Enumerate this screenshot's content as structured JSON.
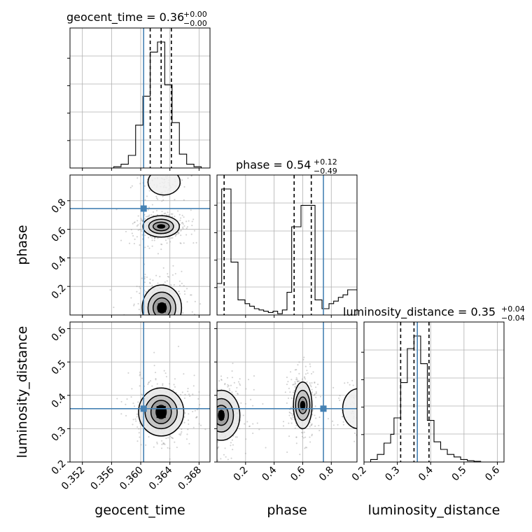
{
  "chart_data": {
    "type": "corner",
    "parameters": [
      "geocent_time",
      "phase",
      "luminosity_distance"
    ],
    "truth": {
      "geocent_time": 0.3604,
      "phase": 0.745,
      "luminosity_distance": 0.36
    },
    "colors": {
      "truth": "#4682b4",
      "hist": "#000000",
      "grid": "#b0b0b0",
      "points": "#9a9a9a"
    },
    "titles": [
      {
        "name": "geocent_time",
        "median": "0.36",
        "plus": "+0.00",
        "minus": "−0.00"
      },
      {
        "name": "phase",
        "median": "0.54",
        "plus": "+0.12",
        "minus": "−0.49"
      },
      {
        "name": "luminosity_distance",
        "median": "0.35",
        "plus": "+0.04",
        "minus": "−0.04"
      }
    ],
    "axes": {
      "geocent_time": {
        "range": [
          0.3503,
          0.3695
        ],
        "ticks": [
          0.352,
          0.356,
          0.36,
          0.364,
          0.368
        ],
        "tick_labels": [
          "0.352",
          "0.356",
          "0.360",
          "0.364",
          "0.368"
        ]
      },
      "phase": {
        "range": [
          0.0,
          0.98
        ],
        "ticks": [
          0.2,
          0.4,
          0.6,
          0.8
        ],
        "tick_labels": [
          "0.2",
          "0.4",
          "0.6",
          "0.8"
        ]
      },
      "luminosity_distance": {
        "range": [
          0.2,
          0.62
        ],
        "ticks": [
          0.2,
          0.3,
          0.4,
          0.5,
          0.6
        ],
        "tick_labels": [
          "0.2",
          "0.3",
          "0.4",
          "0.5",
          "0.6"
        ]
      }
    },
    "histograms": {
      "geocent_time": {
        "edges": [
          0.3503,
          0.3513,
          0.3523,
          0.3533,
          0.3543,
          0.3553,
          0.3563,
          0.3573,
          0.3583,
          0.3593,
          0.3603,
          0.3613,
          0.3623,
          0.3633,
          0.3643,
          0.3653,
          0.3663,
          0.3673,
          0.3683,
          0.3693
        ],
        "counts": [
          0,
          0,
          0,
          0,
          0,
          0,
          1,
          3,
          10,
          34,
          57,
          92,
          100,
          66,
          36,
          11,
          3,
          1,
          0
        ],
        "quantiles": [
          0.3613,
          0.3628,
          0.3642
        ]
      },
      "phase": {
        "edges": [
          0.0,
          0.0163,
          0.0327,
          0.049,
          0.0653,
          0.0817,
          0.098,
          0.1143,
          0.1307,
          0.147,
          0.1633,
          0.1797,
          0.196,
          0.2123,
          0.2287,
          0.245,
          0.2613,
          0.2777,
          0.294,
          0.3103,
          0.3267,
          0.343,
          0.3593,
          0.3757,
          0.392,
          0.4083,
          0.4247,
          0.441,
          0.4573,
          0.4737,
          0.49,
          0.5063,
          0.5227,
          0.539,
          0.5553,
          0.5717,
          0.588,
          0.6043,
          0.6207,
          0.637,
          0.6533,
          0.6697,
          0.6863,
          0.7023,
          0.7187,
          0.735,
          0.7513,
          0.7677,
          0.784,
          0.8003,
          0.8167,
          0.833,
          0.8493,
          0.8657,
          0.882,
          0.8983,
          0.9147,
          0.931,
          0.9473,
          0.9637,
          0.98
        ],
        "counts": [
          25,
          25,
          100,
          100,
          100,
          100,
          42,
          42,
          42,
          12,
          12,
          12,
          9,
          9,
          7,
          7,
          5,
          5,
          4,
          4,
          3,
          3,
          2,
          2,
          3,
          3,
          1,
          1,
          4,
          4,
          18,
          18,
          70,
          70,
          70,
          70,
          87,
          87,
          87,
          87,
          87,
          87,
          12,
          12,
          12,
          5,
          5,
          5,
          9,
          9,
          11,
          11,
          14,
          14,
          16,
          16,
          20,
          20,
          20,
          20
        ],
        "quantiles": [
          0.05,
          0.54,
          0.66
        ]
      },
      "luminosity_distance": {
        "edges": [
          0.2,
          0.21,
          0.22,
          0.23,
          0.24,
          0.25,
          0.26,
          0.27,
          0.28,
          0.29,
          0.3,
          0.31,
          0.32,
          0.33,
          0.34,
          0.35,
          0.36,
          0.37,
          0.38,
          0.39,
          0.4,
          0.41,
          0.42,
          0.43,
          0.44,
          0.45,
          0.46,
          0.47,
          0.48,
          0.49,
          0.5,
          0.51,
          0.52,
          0.53,
          0.54,
          0.55,
          0.56,
          0.57
        ],
        "counts": [
          0,
          0,
          2,
          2,
          6,
          6,
          15,
          15,
          22,
          35,
          35,
          63,
          63,
          90,
          90,
          100,
          100,
          78,
          78,
          33,
          33,
          16,
          16,
          10,
          10,
          6,
          6,
          4,
          4,
          2,
          2,
          1,
          1,
          0.5,
          0.5,
          0,
          0
        ],
        "quantiles": [
          0.31,
          0.35,
          0.395
        ]
      }
    },
    "contours": {
      "phase_vs_geocent_time": [
        {
          "cx": 0.3628,
          "cy": 0.62,
          "rx": [
            0.0005,
            0.0011,
            0.0017,
            0.0025
          ],
          "ry": [
            0.012,
            0.03,
            0.05,
            0.075
          ]
        },
        {
          "cx": 0.3629,
          "cy": 0.05,
          "rx": [
            0.0006,
            0.0012,
            0.0019,
            0.0027
          ],
          "ry": [
            0.035,
            0.07,
            0.11,
            0.16
          ]
        },
        {
          "cx": 0.3632,
          "cy": 0.93,
          "rx": [
            0.0022
          ],
          "ry": [
            0.09
          ]
        }
      ],
      "luminosity_distance_vs_geocent_time": [
        {
          "cx": 0.3628,
          "cy": 0.35,
          "rx": [
            0.0007,
            0.0014,
            0.0022,
            0.0031
          ],
          "ry": [
            0.02,
            0.035,
            0.05,
            0.072
          ]
        }
      ],
      "luminosity_distance_vs_phase": [
        {
          "cx": 0.03,
          "cy": 0.34,
          "rx": [
            0.02,
            0.05,
            0.085,
            0.13
          ],
          "ry": [
            0.015,
            0.03,
            0.05,
            0.075
          ]
        },
        {
          "cx": 0.6,
          "cy": 0.37,
          "rx": [
            0.015,
            0.03,
            0.05,
            0.065
          ],
          "ry": [
            0.012,
            0.025,
            0.045,
            0.07
          ]
        },
        {
          "cx": 0.99,
          "cy": 0.36,
          "rx": [
            0.11
          ],
          "ry": [
            0.06
          ]
        }
      ]
    }
  }
}
